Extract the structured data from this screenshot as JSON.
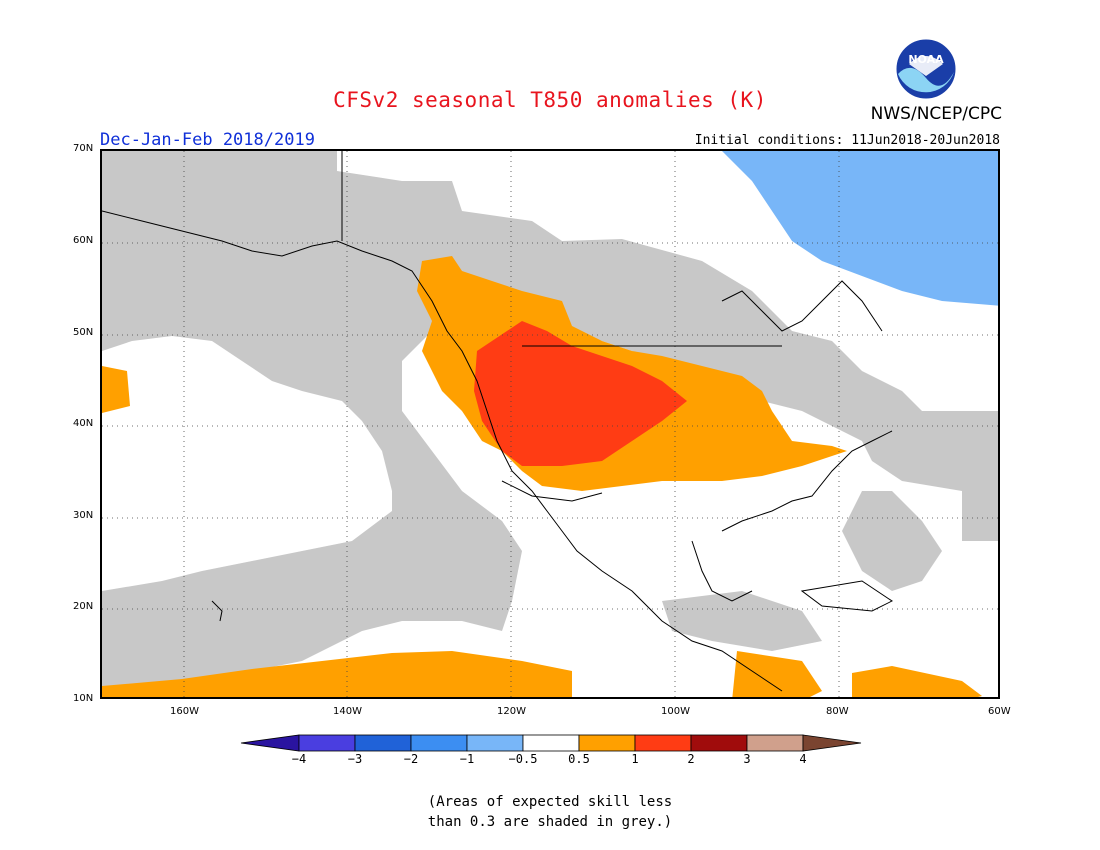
{
  "title": "CFSv2 seasonal T850 anomalies (K)",
  "organization": "NWS/NCEP/CPC",
  "logo_text": "NOAA",
  "season": "Dec-Jan-Feb 2018/2019",
  "initial_conditions": "Initial conditions: 11Jun2018-20Jun2018",
  "lat_labels": [
    "70N",
    "60N",
    "50N",
    "40N",
    "30N",
    "20N",
    "10N"
  ],
  "lon_labels": [
    "160W",
    "140W",
    "120W",
    "100W",
    "80W",
    "60W"
  ],
  "colorbar": {
    "labels": [
      "−4",
      "−3",
      "−2",
      "−1",
      "−0.5",
      "0.5",
      "1",
      "2",
      "3",
      "4"
    ],
    "colors": [
      "#2a14a0",
      "#4a3ee0",
      "#2062d8",
      "#3c8ef2",
      "#78b6f8",
      "#ffffff",
      "#ffa000",
      "#ff3c14",
      "#a00c0c",
      "#d0a08c",
      "#7a4430"
    ]
  },
  "note_line1": "(Areas of expected skill less",
  "note_line2": "than 0.3 are shaded in grey.)",
  "map_colors": {
    "grey": "#c8c8c8",
    "light_blue": "#78b6f8",
    "orange": "#ffa000",
    "red_orange": "#ff3c14"
  }
}
